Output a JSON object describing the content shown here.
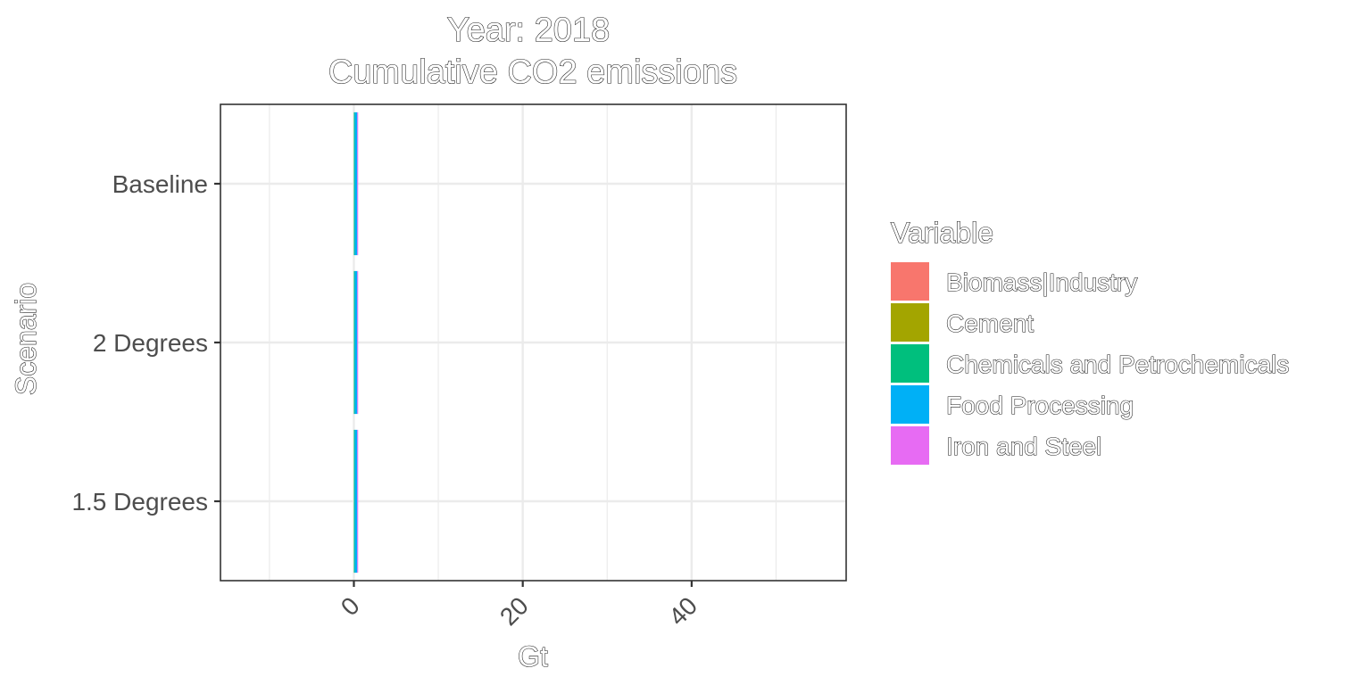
{
  "chart_data": {
    "type": "bar",
    "orientation": "horizontal",
    "stacked": true,
    "title": "Year: 2018",
    "subtitle": "Cumulative CO2 emissions",
    "xlabel": "Gt",
    "ylabel": "Scenario",
    "categories": [
      "Baseline",
      "2 Degrees",
      "1.5 Degrees"
    ],
    "xlim": [
      -15.8,
      58.3
    ],
    "xticks": [
      0,
      20,
      40
    ],
    "grid": true,
    "legend_title": "Variable",
    "legend_position": "right",
    "series": [
      {
        "name": "Biomass|Industry",
        "color": "#F8766D",
        "values": [
          0,
          0,
          0
        ]
      },
      {
        "name": "Cement",
        "color": "#A3A500",
        "values": [
          0,
          0,
          0
        ]
      },
      {
        "name": "Chemicals and Petrochemicals",
        "color": "#00BF7D",
        "values": [
          0.1,
          0.1,
          0.1
        ]
      },
      {
        "name": "Food Processing",
        "color": "#00B0F6",
        "values": [
          0.3,
          0.3,
          0.3
        ]
      },
      {
        "name": "Iron and Steel",
        "color": "#E76BF3",
        "values": [
          0.1,
          0.1,
          0.1
        ]
      }
    ]
  }
}
